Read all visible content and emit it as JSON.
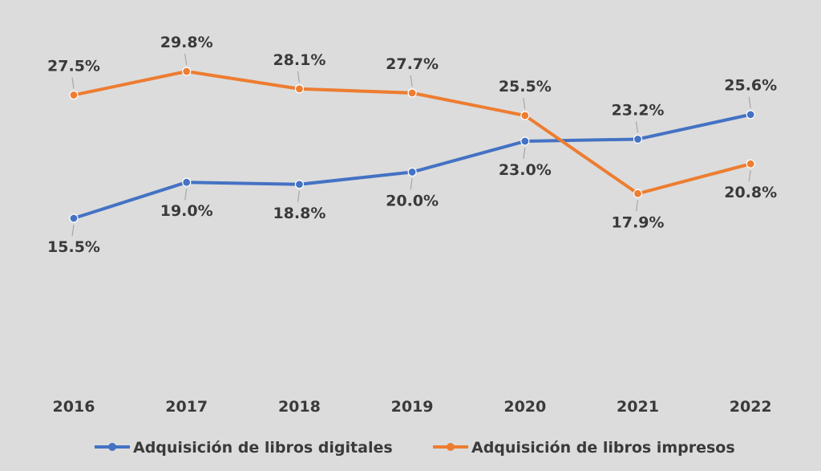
{
  "chart_data": {
    "type": "line",
    "categories": [
      "2016",
      "2017",
      "2018",
      "2019",
      "2020",
      "2021",
      "2022"
    ],
    "series": [
      {
        "name": "Adquisición de libros digitales",
        "color": "#4472c4",
        "values": [
          15.5,
          19.0,
          18.8,
          20.0,
          23.0,
          23.2,
          25.6
        ],
        "labels": [
          "15.5%",
          "19.0%",
          "18.8%",
          "20.0%",
          "23.0%",
          "23.2%",
          "25.6%"
        ]
      },
      {
        "name": "Adquisición de libros impresos",
        "color": "#ed7d31",
        "values": [
          27.5,
          29.8,
          28.1,
          27.7,
          25.5,
          17.9,
          20.8
        ],
        "labels": [
          "27.5%",
          "29.8%",
          "28.1%",
          "27.7%",
          "25.5%",
          "17.9%",
          "20.8%"
        ]
      }
    ],
    "legend_position": "bottom",
    "grid": false
  }
}
